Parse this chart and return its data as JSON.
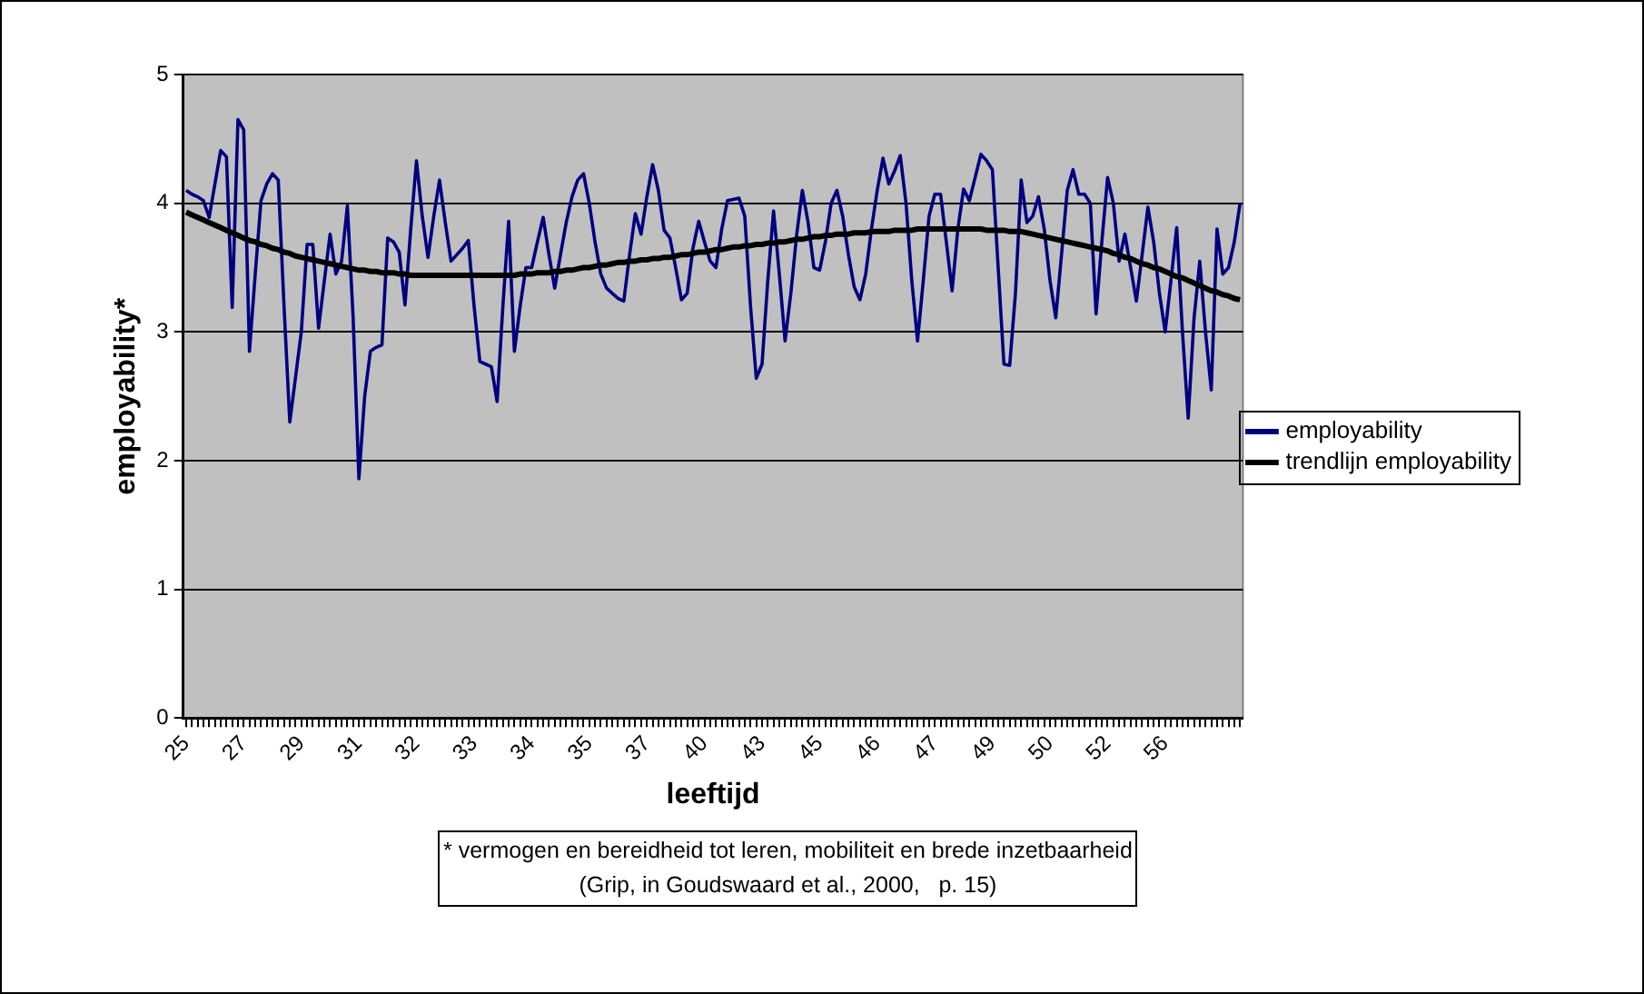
{
  "chart_data": {
    "type": "line",
    "xlabel": "leeftijd",
    "ylabel": "employability*",
    "categories": [
      "25",
      null,
      null,
      null,
      null,
      null,
      null,
      null,
      null,
      null,
      "27",
      null,
      null,
      null,
      null,
      null,
      null,
      null,
      null,
      null,
      "29",
      null,
      null,
      null,
      null,
      null,
      null,
      null,
      null,
      null,
      "31",
      null,
      null,
      null,
      null,
      null,
      null,
      null,
      null,
      null,
      "32",
      null,
      null,
      null,
      null,
      null,
      null,
      null,
      null,
      null,
      "33",
      null,
      null,
      null,
      null,
      null,
      null,
      null,
      null,
      null,
      "34",
      null,
      null,
      null,
      null,
      null,
      null,
      null,
      null,
      null,
      "35",
      null,
      null,
      null,
      null,
      null,
      null,
      null,
      null,
      null,
      "37",
      null,
      null,
      null,
      null,
      null,
      null,
      null,
      null,
      null,
      "40",
      null,
      null,
      null,
      null,
      null,
      null,
      null,
      null,
      null,
      "43",
      null,
      null,
      null,
      null,
      null,
      null,
      null,
      null,
      null,
      "45",
      null,
      null,
      null,
      null,
      null,
      null,
      null,
      null,
      null,
      "46",
      null,
      null,
      null,
      null,
      null,
      null,
      null,
      null,
      null,
      "47",
      null,
      null,
      null,
      null,
      null,
      null,
      null,
      null,
      null,
      "49",
      null,
      null,
      null,
      null,
      null,
      null,
      null,
      null,
      null,
      "50",
      null,
      null,
      null,
      null,
      null,
      null,
      null,
      null,
      null,
      "52",
      null,
      null,
      null,
      null,
      null,
      null,
      null,
      null,
      null,
      "56",
      null,
      null,
      null,
      null,
      null,
      null,
      null,
      null,
      null,
      null,
      null,
      null,
      null
    ],
    "series": [
      {
        "name": "employability",
        "color": "#000080",
        "values": [
          4.1,
          4.07,
          4.05,
          4.02,
          3.89,
          4.15,
          4.41,
          4.36,
          3.19,
          4.65,
          4.57,
          2.85,
          3.45,
          4.02,
          4.15,
          4.23,
          4.18,
          3.2,
          2.3,
          2.65,
          3.0,
          3.68,
          3.68,
          3.03,
          3.4,
          3.76,
          3.45,
          3.55,
          3.98,
          3.11,
          1.86,
          2.5,
          2.85,
          2.88,
          2.9,
          3.73,
          3.7,
          3.62,
          3.21,
          3.8,
          4.33,
          3.9,
          3.58,
          3.9,
          4.18,
          3.85,
          3.55,
          3.6,
          3.65,
          3.71,
          3.2,
          2.77,
          2.75,
          2.73,
          2.46,
          3.2,
          3.86,
          2.85,
          3.2,
          3.5,
          3.5,
          3.7,
          3.89,
          3.6,
          3.34,
          3.6,
          3.85,
          4.05,
          4.18,
          4.23,
          4.0,
          3.7,
          3.45,
          3.34,
          3.3,
          3.26,
          3.24,
          3.6,
          3.92,
          3.76,
          4.05,
          4.3,
          4.1,
          3.79,
          3.73,
          3.5,
          3.25,
          3.3,
          3.65,
          3.86,
          3.7,
          3.55,
          3.5,
          3.8,
          4.02,
          4.03,
          4.04,
          3.9,
          3.2,
          2.64,
          2.75,
          3.4,
          3.94,
          3.45,
          2.93,
          3.3,
          3.75,
          4.1,
          3.85,
          3.5,
          3.48,
          3.7,
          4.0,
          4.1,
          3.9,
          3.6,
          3.35,
          3.25,
          3.45,
          3.8,
          4.1,
          4.35,
          4.15,
          4.25,
          4.37,
          4.0,
          3.4,
          2.93,
          3.4,
          3.9,
          4.07,
          4.07,
          3.7,
          3.32,
          3.8,
          4.11,
          4.02,
          4.2,
          4.38,
          4.33,
          4.26,
          3.5,
          2.75,
          2.74,
          3.3,
          4.18,
          3.85,
          3.9,
          4.05,
          3.8,
          3.4,
          3.11,
          3.6,
          4.1,
          4.26,
          4.07,
          4.07,
          4.0,
          3.14,
          3.7,
          4.2,
          4.0,
          3.55,
          3.76,
          3.5,
          3.24,
          3.6,
          3.97,
          3.7,
          3.3,
          3.0,
          3.4,
          3.81,
          3.0,
          2.33,
          3.1,
          3.55,
          3.0,
          2.55,
          3.8,
          3.45,
          3.5,
          3.7,
          4.0
        ]
      },
      {
        "name": "trendlijn employability",
        "color": "#000000",
        "values": [
          3.93,
          3.91,
          3.89,
          3.87,
          3.85,
          3.83,
          3.81,
          3.79,
          3.77,
          3.75,
          3.73,
          3.71,
          3.7,
          3.68,
          3.67,
          3.65,
          3.64,
          3.62,
          3.61,
          3.59,
          3.58,
          3.57,
          3.56,
          3.55,
          3.54,
          3.53,
          3.52,
          3.51,
          3.5,
          3.49,
          3.48,
          3.48,
          3.47,
          3.47,
          3.46,
          3.46,
          3.46,
          3.45,
          3.45,
          3.44,
          3.44,
          3.44,
          3.44,
          3.44,
          3.44,
          3.44,
          3.44,
          3.44,
          3.44,
          3.44,
          3.44,
          3.44,
          3.44,
          3.44,
          3.44,
          3.44,
          3.44,
          3.44,
          3.45,
          3.45,
          3.45,
          3.46,
          3.46,
          3.46,
          3.47,
          3.47,
          3.48,
          3.48,
          3.49,
          3.5,
          3.5,
          3.51,
          3.52,
          3.52,
          3.53,
          3.54,
          3.54,
          3.55,
          3.55,
          3.56,
          3.56,
          3.57,
          3.57,
          3.58,
          3.58,
          3.59,
          3.6,
          3.6,
          3.61,
          3.62,
          3.62,
          3.63,
          3.64,
          3.64,
          3.65,
          3.66,
          3.66,
          3.67,
          3.67,
          3.68,
          3.68,
          3.69,
          3.69,
          3.7,
          3.7,
          3.71,
          3.72,
          3.72,
          3.73,
          3.74,
          3.74,
          3.75,
          3.75,
          3.76,
          3.76,
          3.76,
          3.77,
          3.77,
          3.77,
          3.78,
          3.78,
          3.78,
          3.78,
          3.79,
          3.79,
          3.79,
          3.79,
          3.8,
          3.8,
          3.8,
          3.8,
          3.8,
          3.8,
          3.8,
          3.8,
          3.8,
          3.8,
          3.8,
          3.8,
          3.79,
          3.79,
          3.79,
          3.79,
          3.78,
          3.78,
          3.78,
          3.77,
          3.76,
          3.75,
          3.74,
          3.73,
          3.72,
          3.71,
          3.7,
          3.69,
          3.68,
          3.67,
          3.66,
          3.65,
          3.64,
          3.63,
          3.61,
          3.6,
          3.58,
          3.57,
          3.55,
          3.53,
          3.52,
          3.5,
          3.49,
          3.47,
          3.45,
          3.43,
          3.42,
          3.4,
          3.38,
          3.36,
          3.34,
          3.32,
          3.31,
          3.29,
          3.28,
          3.26,
          3.25
        ]
      }
    ],
    "ylim": [
      0,
      5
    ],
    "yticks": [
      0,
      1,
      2,
      3,
      4,
      5
    ],
    "grid": "y",
    "legend": "right",
    "marker": "none",
    "line_style": "solid",
    "annotations": [
      "* vermogen en bereidheid tot leren, mobiliteit en brede inzetbaarheid",
      "(Grip, in Goudswaard et al., 2000,   p. 15)"
    ]
  }
}
